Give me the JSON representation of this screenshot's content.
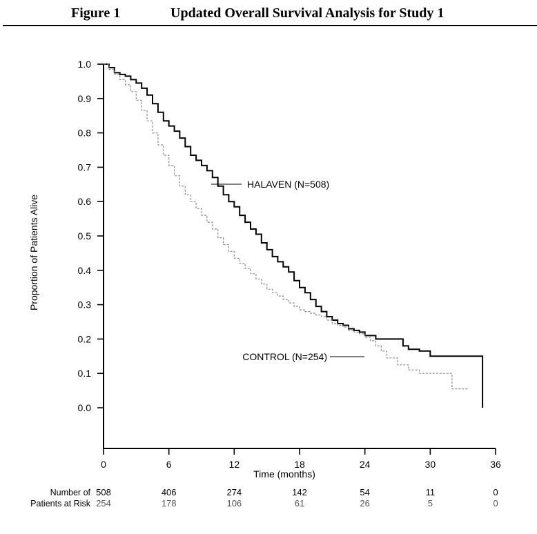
{
  "figure": {
    "label": "Figure 1",
    "caption": "Updated Overall Survival Analysis for Study 1"
  },
  "colors": {
    "halaven": "#000000",
    "control": "#8a8a8a"
  },
  "chart_data": {
    "type": "line",
    "title": "Updated Overall Survival Analysis for Study 1",
    "xlabel": "Time (months)",
    "ylabel": "Proportion of Patients Alive",
    "xlim": [
      0,
      36
    ],
    "ylim": [
      0.0,
      1.0
    ],
    "xticks": [
      0,
      6,
      12,
      18,
      24,
      30,
      36
    ],
    "yticks": [
      "0.0",
      "0.1",
      "0.2",
      "0.3",
      "0.4",
      "0.5",
      "0.6",
      "0.7",
      "0.8",
      "0.9",
      "1.0"
    ],
    "grid": false,
    "series": [
      {
        "name": "HALAVEN (N=508)",
        "style": "solid",
        "x": [
          0,
          0.5,
          1,
          1.5,
          2,
          2.5,
          3,
          3.5,
          4,
          4.5,
          5,
          5.5,
          6,
          6.5,
          7,
          7.5,
          8,
          8.5,
          9,
          9.5,
          10,
          10.5,
          11,
          11.5,
          12,
          12.5,
          13,
          13.5,
          14,
          14.5,
          15,
          15.5,
          16,
          16.5,
          17,
          17.5,
          18,
          18.5,
          19,
          19.5,
          20,
          20.5,
          21,
          21.5,
          22,
          22.5,
          23,
          23.5,
          24,
          25,
          26,
          27,
          27.5,
          28,
          29,
          30,
          31,
          32,
          33,
          34,
          34.8
        ],
        "y": [
          1.0,
          0.99,
          0.975,
          0.97,
          0.965,
          0.955,
          0.945,
          0.93,
          0.91,
          0.885,
          0.86,
          0.835,
          0.82,
          0.805,
          0.785,
          0.76,
          0.735,
          0.72,
          0.705,
          0.69,
          0.67,
          0.645,
          0.62,
          0.6,
          0.585,
          0.56,
          0.54,
          0.52,
          0.505,
          0.48,
          0.46,
          0.44,
          0.425,
          0.41,
          0.395,
          0.37,
          0.35,
          0.335,
          0.315,
          0.295,
          0.28,
          0.265,
          0.255,
          0.245,
          0.24,
          0.23,
          0.225,
          0.22,
          0.21,
          0.2,
          0.2,
          0.2,
          0.18,
          0.17,
          0.165,
          0.15,
          0.15,
          0.15,
          0.15,
          0.15,
          0.0
        ]
      },
      {
        "name": "CONTROL (N=254)",
        "style": "dashed",
        "x": [
          0,
          0.5,
          1,
          1.5,
          2,
          2.5,
          3,
          3.5,
          4,
          4.5,
          5,
          5.5,
          6,
          6.5,
          7,
          7.5,
          8,
          8.5,
          9,
          9.5,
          10,
          10.5,
          11,
          11.5,
          12,
          12.5,
          13,
          13.5,
          14,
          14.5,
          15,
          15.5,
          16,
          16.5,
          17,
          17.5,
          18,
          18.5,
          19,
          19.5,
          20,
          20.5,
          21,
          21.5,
          22,
          22.5,
          23,
          23.5,
          24,
          24.5,
          25,
          25.5,
          26,
          27,
          28,
          29,
          30,
          31,
          32,
          33.5
        ],
        "y": [
          1.0,
          0.985,
          0.97,
          0.955,
          0.94,
          0.92,
          0.895,
          0.865,
          0.835,
          0.8,
          0.765,
          0.735,
          0.705,
          0.675,
          0.645,
          0.62,
          0.6,
          0.58,
          0.56,
          0.54,
          0.52,
          0.495,
          0.475,
          0.455,
          0.435,
          0.42,
          0.405,
          0.39,
          0.375,
          0.36,
          0.345,
          0.335,
          0.325,
          0.315,
          0.305,
          0.295,
          0.285,
          0.28,
          0.275,
          0.27,
          0.265,
          0.255,
          0.245,
          0.24,
          0.235,
          0.225,
          0.22,
          0.215,
          0.205,
          0.195,
          0.18,
          0.165,
          0.145,
          0.125,
          0.11,
          0.1,
          0.1,
          0.1,
          0.055,
          0.055
        ]
      }
    ],
    "annotations": [
      {
        "series": 0,
        "text": "HALAVEN (N=508)",
        "x": 10.5
      },
      {
        "series": 1,
        "text": "CONTROL (N=254)",
        "x": 24.5
      }
    ],
    "at_risk": {
      "header": [
        "Number of",
        "Patients at Risk"
      ],
      "times": [
        0,
        6,
        12,
        18,
        24,
        30,
        36
      ],
      "rows": [
        {
          "series": "HALAVEN (N=508)",
          "values": [
            "508",
            "406",
            "274",
            "142",
            "54",
            "11",
            "0"
          ]
        },
        {
          "series": "CONTROL (N=254)",
          "values": [
            "254",
            "178",
            "106",
            "61",
            "26",
            "5",
            "0"
          ]
        }
      ]
    }
  }
}
